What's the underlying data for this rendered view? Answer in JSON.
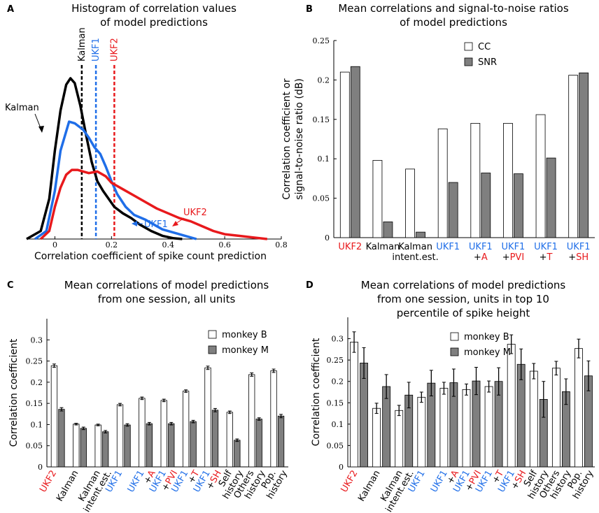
{
  "colors": {
    "kalman": "#000000",
    "ukf1": "#1f6ee8",
    "ukf2": "#e8191c",
    "cc_fill": "#ffffff",
    "snr_fill": "#7f7f7f"
  },
  "chart_data": [
    {
      "panel": "A",
      "type": "line",
      "title": [
        "Histogram of correlation values",
        "of model predictions"
      ],
      "xlabel": "Correlation coefficient of spike count prediction",
      "ylabel": "",
      "xlim": [
        -0.1,
        0.8
      ],
      "xticks": [
        "0",
        "0.2",
        "0.4",
        "0.6",
        "0.8"
      ],
      "xtick_values": [
        0,
        0.2,
        0.4,
        0.6,
        0.8
      ],
      "ylim": [
        0,
        1
      ],
      "series": [
        {
          "name": "Kalman",
          "color": "#000000",
          "x": [
            -0.1,
            -0.05,
            -0.02,
            0.0,
            0.02,
            0.04,
            0.055,
            0.07,
            0.09,
            0.11,
            0.13,
            0.15,
            0.17,
            0.19,
            0.21,
            0.24,
            0.27,
            0.3,
            0.34,
            0.38,
            0.42,
            0.45
          ],
          "y": [
            0,
            0.05,
            0.25,
            0.55,
            0.8,
            0.96,
            1.0,
            0.97,
            0.83,
            0.65,
            0.48,
            0.36,
            0.3,
            0.25,
            0.2,
            0.16,
            0.13,
            0.09,
            0.05,
            0.02,
            0.005,
            0
          ]
        },
        {
          "name": "UKF1",
          "color": "#1f6ee8",
          "x": [
            -0.07,
            -0.03,
            0.0,
            0.02,
            0.05,
            0.07,
            0.1,
            0.12,
            0.14,
            0.16,
            0.18,
            0.2,
            0.22,
            0.25,
            0.28,
            0.32,
            0.35,
            0.38,
            0.42,
            0.46,
            0.5
          ],
          "y": [
            0,
            0.05,
            0.3,
            0.55,
            0.73,
            0.72,
            0.68,
            0.63,
            0.57,
            0.53,
            0.45,
            0.36,
            0.28,
            0.2,
            0.15,
            0.12,
            0.09,
            0.06,
            0.04,
            0.02,
            0
          ]
        },
        {
          "name": "UKF2",
          "color": "#e8191c",
          "x": [
            -0.05,
            -0.02,
            0.0,
            0.02,
            0.04,
            0.06,
            0.08,
            0.1,
            0.12,
            0.15,
            0.18,
            0.2,
            0.24,
            0.28,
            0.32,
            0.36,
            0.4,
            0.44,
            0.48,
            0.52,
            0.56,
            0.6,
            0.65,
            0.7,
            0.75
          ],
          "y": [
            0,
            0.05,
            0.2,
            0.32,
            0.4,
            0.43,
            0.43,
            0.42,
            0.41,
            0.42,
            0.39,
            0.35,
            0.31,
            0.27,
            0.23,
            0.19,
            0.16,
            0.13,
            0.11,
            0.08,
            0.05,
            0.03,
            0.02,
            0.01,
            0
          ]
        }
      ],
      "dashed_lines": [
        {
          "label": "Kalman",
          "x": 0.095,
          "color": "#000000"
        },
        {
          "label": "UKF1",
          "x": 0.145,
          "color": "#1f6ee8"
        },
        {
          "label": "UKF2",
          "x": 0.21,
          "color": "#e8191c"
        }
      ],
      "annotations": [
        "Kalman",
        "UKF1",
        "UKF2"
      ]
    },
    {
      "panel": "B",
      "type": "bar",
      "title": [
        "Mean correlations and signal-to-noise ratios",
        "of model predictions"
      ],
      "ylabel": [
        "Correlation coefficient or",
        "signal-to-noise ratio (dB)"
      ],
      "ylim": [
        0,
        0.25
      ],
      "yticks": [
        "0",
        "0.05",
        "0.1",
        "0.15",
        "0.2",
        "0.25"
      ],
      "legend": [
        "CC",
        "SNR"
      ],
      "legend_position": "top-right",
      "categories": [
        {
          "line1": "UKF2",
          "line1_color": "#e8191c",
          "prefix": "",
          "line2": "",
          "line2_color": "#000000"
        },
        {
          "line1": "Kalman",
          "line1_color": "#000000",
          "prefix": "",
          "line2": "",
          "line2_color": "#000000"
        },
        {
          "line1": "Kalman",
          "line1_color": "#000000",
          "prefix": "",
          "line2": "intent.est.",
          "line2_color": "#000000"
        },
        {
          "line1": "UKF1",
          "line1_color": "#1f6ee8",
          "prefix": "",
          "line2": "",
          "line2_color": "#000000"
        },
        {
          "line1": "UKF1",
          "line1_color": "#1f6ee8",
          "prefix": "+",
          "line2": "A",
          "line2_color": "#e8191c"
        },
        {
          "line1": "UKF1",
          "line1_color": "#1f6ee8",
          "prefix": "+",
          "line2": "PVI",
          "line2_color": "#e8191c"
        },
        {
          "line1": "UKF1",
          "line1_color": "#1f6ee8",
          "prefix": "+",
          "line2": "T",
          "line2_color": "#e8191c"
        },
        {
          "line1": "UKF1",
          "line1_color": "#1f6ee8",
          "prefix": "+",
          "line2": "SH",
          "line2_color": "#e8191c"
        }
      ],
      "series": [
        {
          "name": "CC",
          "values": [
            0.21,
            0.098,
            0.087,
            0.138,
            0.145,
            0.145,
            0.156,
            0.206
          ]
        },
        {
          "name": "SNR",
          "values": [
            0.217,
            0.02,
            0.007,
            0.07,
            0.082,
            0.081,
            0.101,
            0.209
          ]
        }
      ]
    },
    {
      "panel": "C",
      "type": "bar",
      "title": [
        "Mean correlations of model predictions",
        "from one session, all units"
      ],
      "ylabel": "Correlation coefficient",
      "ylim": [
        0,
        0.35
      ],
      "yticks": [
        "0",
        "0.05",
        "0.1",
        "0.15",
        "0.2",
        "0.25",
        "0.3"
      ],
      "legend": [
        "monkey B",
        "monkey M"
      ],
      "legend_position": "top-right",
      "categories": [
        {
          "line1": "UKF2",
          "line1_color": "#e8191c",
          "prefix": "",
          "line2": "",
          "line2_color": "#000000"
        },
        {
          "line1": "Kalman",
          "line1_color": "#000000",
          "prefix": "",
          "line2": "",
          "line2_color": "#000000"
        },
        {
          "line1": "Kalman",
          "line1_color": "#000000",
          "prefix": "",
          "line2": "intent.est.",
          "line2_color": "#000000"
        },
        {
          "line1": "UKF1",
          "line1_color": "#1f6ee8",
          "prefix": "",
          "line2": "",
          "line2_color": "#000000"
        },
        {
          "line1": "UKF1",
          "line1_color": "#1f6ee8",
          "prefix": "+",
          "line2": "A",
          "line2_color": "#e8191c"
        },
        {
          "line1": "UKF1",
          "line1_color": "#1f6ee8",
          "prefix": "+",
          "line2": "PVI",
          "line2_color": "#e8191c"
        },
        {
          "line1": "UKF1",
          "line1_color": "#1f6ee8",
          "prefix": "+",
          "line2": "T",
          "line2_color": "#e8191c"
        },
        {
          "line1": "UKF1",
          "line1_color": "#1f6ee8",
          "prefix": "+",
          "line2": "SH",
          "line2_color": "#e8191c"
        },
        {
          "line1": "Self",
          "line1_color": "#000000",
          "prefix": "",
          "line2": "history",
          "line2_color": "#000000"
        },
        {
          "line1": "Others",
          "line1_color": "#000000",
          "prefix": "",
          "line2": "history",
          "line2_color": "#000000"
        },
        {
          "line1": "Pop.",
          "line1_color": "#000000",
          "prefix": "",
          "line2": "history",
          "line2_color": "#000000"
        }
      ],
      "series": [
        {
          "name": "monkey B",
          "values": [
            0.239,
            0.101,
            0.099,
            0.147,
            0.162,
            0.157,
            0.179,
            0.234,
            0.129,
            0.218,
            0.227
          ],
          "errors": [
            0.004,
            0.002,
            0.002,
            0.003,
            0.003,
            0.003,
            0.003,
            0.004,
            0.003,
            0.004,
            0.004
          ]
        },
        {
          "name": "monkey M",
          "values": [
            0.136,
            0.091,
            0.083,
            0.099,
            0.102,
            0.102,
            0.107,
            0.134,
            0.063,
            0.113,
            0.12
          ],
          "errors": [
            0.004,
            0.003,
            0.003,
            0.003,
            0.003,
            0.003,
            0.003,
            0.004,
            0.003,
            0.003,
            0.004
          ]
        }
      ]
    },
    {
      "panel": "D",
      "type": "bar",
      "title": [
        "Mean correlations of model predictions",
        "from one session, units in top 10",
        "percentile of spike height"
      ],
      "ylabel": "Correlation coefficient",
      "ylim": [
        0,
        0.35
      ],
      "yticks": [
        "0",
        "0.05",
        "0.1",
        "0.15",
        "0.2",
        "0.25",
        "0.3"
      ],
      "legend": [
        "monkey B",
        "monkey M"
      ],
      "legend_position": "top-center",
      "categories": [
        {
          "line1": "UKF2",
          "line1_color": "#e8191c",
          "prefix": "",
          "line2": "",
          "line2_color": "#000000"
        },
        {
          "line1": "Kalman",
          "line1_color": "#000000",
          "prefix": "",
          "line2": "",
          "line2_color": "#000000"
        },
        {
          "line1": "Kalman",
          "line1_color": "#000000",
          "prefix": "",
          "line2": "intent.est.",
          "line2_color": "#000000"
        },
        {
          "line1": "UKF1",
          "line1_color": "#1f6ee8",
          "prefix": "",
          "line2": "",
          "line2_color": "#000000"
        },
        {
          "line1": "UKF1",
          "line1_color": "#1f6ee8",
          "prefix": "+",
          "line2": "A",
          "line2_color": "#e8191c"
        },
        {
          "line1": "UKF1",
          "line1_color": "#1f6ee8",
          "prefix": "+",
          "line2": "PVI",
          "line2_color": "#e8191c"
        },
        {
          "line1": "UKF1",
          "line1_color": "#1f6ee8",
          "prefix": "+",
          "line2": "T",
          "line2_color": "#e8191c"
        },
        {
          "line1": "UKF1",
          "line1_color": "#1f6ee8",
          "prefix": "+",
          "line2": "SH",
          "line2_color": "#e8191c"
        },
        {
          "line1": "Self",
          "line1_color": "#000000",
          "prefix": "",
          "line2": "history",
          "line2_color": "#000000"
        },
        {
          "line1": "Others",
          "line1_color": "#000000",
          "prefix": "",
          "line2": "history",
          "line2_color": "#000000"
        },
        {
          "line1": "Pop.",
          "line1_color": "#000000",
          "prefix": "",
          "line2": "history",
          "line2_color": "#000000"
        }
      ],
      "series": [
        {
          "name": "monkey B",
          "values": [
            0.292,
            0.137,
            0.132,
            0.163,
            0.184,
            0.181,
            0.188,
            0.287,
            0.224,
            0.231,
            0.277
          ],
          "errors": [
            0.024,
            0.012,
            0.012,
            0.012,
            0.014,
            0.013,
            0.013,
            0.022,
            0.018,
            0.016,
            0.022
          ]
        },
        {
          "name": "monkey M",
          "values": [
            0.243,
            0.188,
            0.168,
            0.196,
            0.197,
            0.201,
            0.2,
            0.24,
            0.158,
            0.176,
            0.213
          ],
          "errors": [
            0.036,
            0.028,
            0.03,
            0.03,
            0.032,
            0.032,
            0.032,
            0.036,
            0.042,
            0.03,
            0.035
          ]
        }
      ]
    }
  ],
  "panel_letters": [
    "A",
    "B",
    "C",
    "D"
  ]
}
